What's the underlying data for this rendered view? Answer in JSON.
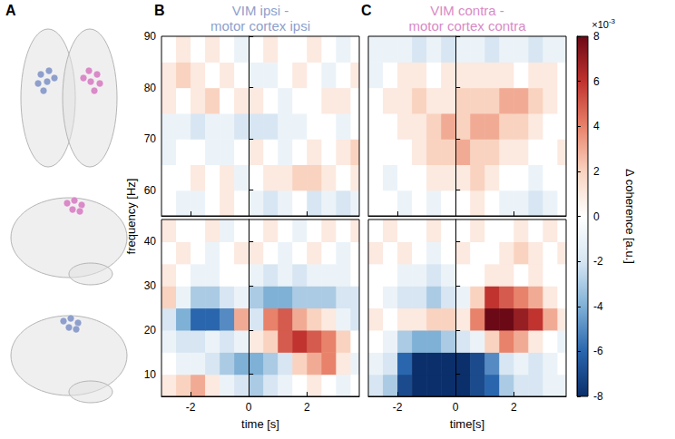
{
  "brain_panel": {
    "label": "A"
  },
  "chart_data": [
    {
      "type": "heatmap",
      "label": "B",
      "title": "VIM ipsi - motor cortex ipsi",
      "color": "#8e9fcc",
      "x_label": "time [s]",
      "y_label": "frequency [Hz]",
      "x": [
        -2.75,
        -2.25,
        -1.75,
        -1.25,
        -0.75,
        -0.25,
        0.25,
        0.75,
        1.25,
        1.75,
        2.25,
        2.75,
        3.25,
        3.75
      ],
      "xlim": [
        -3,
        3.8
      ],
      "xticks": [
        -2,
        0,
        2
      ],
      "bands": [
        {
          "y": [
            57.5,
            62.5,
            67.5,
            72.5,
            77.5,
            82.5,
            87.5
          ],
          "ylim": [
            55,
            90
          ],
          "yticks": [
            60,
            70,
            80,
            90
          ],
          "cells": [
            [
              0,
              -1,
              -1,
              0,
              1,
              0,
              -1,
              -2,
              -1,
              0,
              -2,
              -1,
              -2,
              -1
            ],
            [
              0,
              0,
              1,
              0,
              1,
              -1,
              0,
              1,
              1,
              2,
              2,
              1,
              0,
              1
            ],
            [
              -1,
              0,
              0,
              -1,
              -1,
              0,
              1,
              0,
              -1,
              0,
              1,
              0,
              1,
              2
            ],
            [
              -1,
              -1,
              -2,
              -1,
              -1,
              -2,
              -2,
              -2,
              -1,
              -1,
              0,
              0,
              -1,
              0
            ],
            [
              1,
              0,
              1,
              2,
              0,
              1,
              1,
              0,
              -1,
              0,
              0,
              1,
              1,
              0
            ],
            [
              1,
              2,
              1,
              0,
              1,
              0,
              -1,
              -1,
              0,
              1,
              0,
              -1,
              0,
              1
            ],
            [
              0,
              1,
              0,
              1,
              0,
              -1,
              0,
              1,
              0,
              0,
              1,
              0,
              -1,
              0
            ]
          ]
        },
        {
          "y": [
            7.5,
            12.5,
            17.5,
            22.5,
            27.5,
            32.5,
            37.5,
            42.5
          ],
          "ylim": [
            5,
            45
          ],
          "yticks": [
            10,
            20,
            30,
            40
          ],
          "cells": [
            [
              1,
              2,
              3,
              1,
              -1,
              -2,
              -3,
              -2,
              -1,
              0,
              1,
              0,
              -1,
              0
            ],
            [
              0,
              -1,
              -1,
              -2,
              -3,
              -4,
              -4,
              -3,
              -2,
              2,
              3,
              4,
              1,
              -1
            ],
            [
              -1,
              -2,
              -2,
              -1,
              -2,
              -1,
              1,
              2,
              5,
              6,
              5,
              4,
              2,
              0
            ],
            [
              -2,
              -4,
              -6,
              -6,
              -5,
              3,
              -2,
              4,
              5,
              3,
              2,
              1,
              -1,
              -2
            ],
            [
              2,
              -1,
              -3,
              -3,
              -2,
              -1,
              -3,
              -4,
              -4,
              -3,
              -3,
              -3,
              -2,
              -2
            ],
            [
              1,
              0,
              -1,
              -1,
              0,
              0,
              -1,
              -2,
              -1,
              -2,
              -1,
              -1,
              -1,
              0
            ],
            [
              0,
              1,
              0,
              -1,
              0,
              1,
              1,
              0,
              -1,
              0,
              1,
              0,
              -1,
              0
            ],
            [
              1,
              0,
              0,
              1,
              -1,
              0,
              0,
              1,
              0,
              -1,
              0,
              1,
              0,
              1
            ]
          ]
        }
      ]
    },
    {
      "type": "heatmap",
      "label": "C",
      "title": "VIM contra - motor cortex contra",
      "color": "#d98ac7",
      "x_label": "time[s]",
      "tick_labels": "x",
      "x": [
        -2.75,
        -2.25,
        -1.75,
        -1.25,
        -0.75,
        -0.25,
        0.25,
        0.75,
        1.25,
        1.75,
        2.25,
        2.75,
        3.25,
        3.75
      ],
      "xlim": [
        -3,
        3.8
      ],
      "xticks": [
        -2,
        0,
        2
      ],
      "bands": [
        {
          "y": [
            57.5,
            62.5,
            67.5,
            72.5,
            77.5,
            82.5,
            87.5
          ],
          "ylim": [
            55,
            90
          ],
          "yticks": [
            60,
            70,
            80,
            90
          ],
          "cells": [
            [
              0,
              0,
              -1,
              0,
              -1,
              0,
              0,
              1,
              0,
              -1,
              -1,
              -2,
              -1,
              0
            ],
            [
              0,
              -1,
              0,
              0,
              1,
              1,
              1,
              2,
              1,
              0,
              0,
              -1,
              0,
              0
            ],
            [
              0,
              0,
              0,
              1,
              2,
              2,
              3,
              2,
              2,
              1,
              1,
              0,
              0,
              1
            ],
            [
              0,
              0,
              1,
              1,
              2,
              3,
              2,
              3,
              3,
              2,
              2,
              1,
              0,
              0
            ],
            [
              0,
              1,
              1,
              2,
              1,
              1,
              2,
              2,
              2,
              3,
              3,
              2,
              1,
              0
            ],
            [
              -1,
              0,
              1,
              1,
              0,
              1,
              1,
              1,
              1,
              1,
              0,
              1,
              1,
              0
            ],
            [
              -1,
              -1,
              -1,
              -2,
              -1,
              -2,
              -1,
              -1,
              -2,
              -1,
              -1,
              -2,
              -1,
              -1
            ]
          ]
        },
        {
          "y": [
            7.5,
            12.5,
            17.5,
            22.5,
            27.5,
            32.5,
            37.5,
            42.5
          ],
          "ylim": [
            5,
            45
          ],
          "yticks": [
            10,
            20,
            30,
            40
          ],
          "cells": [
            [
              -2,
              -3,
              -7,
              -8,
              -8,
              -8,
              -8,
              -7,
              -6,
              -3,
              -2,
              -2,
              -1,
              -1
            ],
            [
              -1,
              -2,
              -6,
              -8,
              -8,
              -8,
              -8,
              -7,
              -5,
              -2,
              -1,
              -2,
              -1,
              0
            ],
            [
              0,
              -1,
              -3,
              -4,
              -4,
              -3,
              -2,
              -1,
              2,
              4,
              3,
              1,
              0,
              -1
            ],
            [
              1,
              0,
              1,
              1,
              2,
              2,
              1,
              4,
              8,
              8,
              7,
              6,
              3,
              1
            ],
            [
              0,
              -1,
              -2,
              -2,
              -3,
              -2,
              -1,
              2,
              6,
              5,
              4,
              3,
              1,
              0
            ],
            [
              0,
              0,
              -1,
              -1,
              -2,
              -1,
              0,
              0,
              1,
              1,
              0,
              1,
              0,
              0
            ],
            [
              1,
              0,
              1,
              0,
              -1,
              0,
              1,
              0,
              0,
              1,
              2,
              1,
              0,
              1
            ],
            [
              0,
              1,
              0,
              0,
              1,
              0,
              0,
              1,
              0,
              0,
              1,
              0,
              1,
              0
            ]
          ]
        }
      ]
    }
  ],
  "colorbar": {
    "label": "Δ coherence [a.u.]",
    "multiplier": {
      "base": "×10",
      "exponent": "-3"
    },
    "range": [
      -8,
      8
    ],
    "ticks": [
      -8,
      -6,
      -4,
      -2,
      0,
      2,
      4,
      6,
      8
    ],
    "colors": [
      "#0b2f6b",
      "#2a66ad",
      "#7fb0d6",
      "#d7e6f2",
      "#ffffff",
      "#f9d3c0",
      "#e8826a",
      "#c0332f",
      "#6b0a16"
    ]
  }
}
